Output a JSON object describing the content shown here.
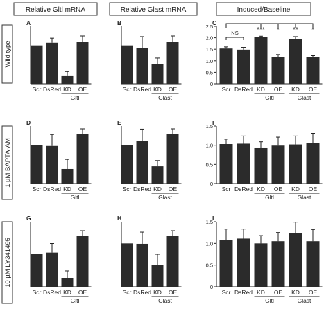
{
  "headers": {
    "col1": "Relative Gltl mRNA",
    "col2": "Relative Glast mRNA",
    "col3": "Induced/Baseline"
  },
  "row_labels": [
    "Wild type",
    "1 µM BAPTA-AM",
    "10 µM LY341495"
  ],
  "significance": {
    "ns": "NS",
    "kd_gltl": "***",
    "oe_gltl": "*",
    "kd_glast": "**",
    "oe_glast": "*"
  },
  "colors": {
    "bar": "#2b2b2b",
    "axis": "#222222",
    "frame": "#333333"
  },
  "chart_data": [
    {
      "type": "bar",
      "panel": "A",
      "title": "",
      "xlabel": "",
      "ylabel": "",
      "categories": [
        "Scr",
        "DsRed",
        "KD",
        "OE"
      ],
      "group_label": "Gltl",
      "values": [
        1.0,
        1.07,
        0.2,
        11.5
      ],
      "errors": [
        0,
        0.12,
        0.12,
        1.5
      ],
      "ylim": [
        0,
        1.5
      ],
      "yticks": [],
      "axis_break": true
    },
    {
      "type": "bar",
      "panel": "B",
      "title": "",
      "xlabel": "",
      "ylabel": "",
      "categories": [
        "Scr",
        "DsRed",
        "KD",
        "OE"
      ],
      "group_label": "Glast",
      "values": [
        1.0,
        0.93,
        0.52,
        3.6
      ],
      "errors": [
        0,
        0.3,
        0.15,
        0.8
      ],
      "ylim": [
        0,
        1.5
      ],
      "yticks": [],
      "axis_break": true
    },
    {
      "type": "bar",
      "panel": "C",
      "title": "",
      "xlabel": "",
      "ylabel": "",
      "categories": [
        "Scr",
        "DsRed",
        "KD",
        "OE",
        "KD",
        "OE"
      ],
      "groups": [
        {
          "label": "Gltl",
          "indices": [
            2,
            3
          ]
        },
        {
          "label": "Glast",
          "indices": [
            4,
            5
          ]
        }
      ],
      "values": [
        1.53,
        1.48,
        2.02,
        1.15,
        1.95,
        1.17
      ],
      "errors": [
        0.07,
        0.1,
        0.05,
        0.12,
        0.1,
        0.05
      ],
      "ylim": [
        0,
        2.5
      ],
      "yticks": [
        "0",
        "0.5",
        "1.0",
        "1.5",
        "2.0",
        "2.5"
      ]
    },
    {
      "type": "bar",
      "panel": "D",
      "title": "",
      "xlabel": "",
      "ylabel": "",
      "categories": [
        "Scr",
        "DsRed",
        "KD",
        "OE"
      ],
      "group_label": "Gltl",
      "values": [
        1.0,
        0.98,
        0.38,
        10.8
      ],
      "errors": [
        0,
        0.3,
        0.25,
        1.5
      ],
      "ylim": [
        0,
        1.5
      ],
      "yticks": [],
      "axis_break": true
    },
    {
      "type": "bar",
      "panel": "E",
      "title": "",
      "xlabel": "",
      "ylabel": "",
      "categories": [
        "Scr",
        "DsRed",
        "KD",
        "OE"
      ],
      "group_label": "Glast",
      "values": [
        1.0,
        1.12,
        0.45,
        4.0
      ],
      "errors": [
        0,
        0.3,
        0.15,
        1.0
      ],
      "ylim": [
        0,
        1.5
      ],
      "yticks": [],
      "axis_break": true
    },
    {
      "type": "bar",
      "panel": "F",
      "title": "",
      "xlabel": "",
      "ylabel": "",
      "categories": [
        "Scr",
        "DsRed",
        "KD",
        "OE",
        "KD",
        "OE"
      ],
      "groups": [
        {
          "label": "Gltl",
          "indices": [
            2,
            3
          ]
        },
        {
          "label": "Glast",
          "indices": [
            4,
            5
          ]
        }
      ],
      "values": [
        1.03,
        1.04,
        0.94,
        0.99,
        1.02,
        1.05
      ],
      "errors": [
        0.13,
        0.2,
        0.15,
        0.22,
        0.22,
        0.26
      ],
      "ylim": [
        0,
        1.5
      ],
      "yticks": [
        "0",
        "0.5",
        "1.0",
        "1.5"
      ]
    },
    {
      "type": "bar",
      "panel": "G",
      "title": "",
      "xlabel": "",
      "ylabel": "",
      "categories": [
        "Scr",
        "DsRed",
        "KD",
        "OE"
      ],
      "group_label": "Gltl",
      "values": [
        1.0,
        1.05,
        0.27,
        12.0
      ],
      "errors": [
        0,
        0.28,
        0.22,
        2.0
      ],
      "ylim": [
        0,
        2.0
      ],
      "yticks": [],
      "axis_break": true
    },
    {
      "type": "bar",
      "panel": "H",
      "title": "",
      "xlabel": "",
      "ylabel": "",
      "categories": [
        "Scr",
        "DsRed",
        "KD",
        "OE"
      ],
      "group_label": "Glast",
      "values": [
        1.0,
        0.99,
        0.5,
        4.2
      ],
      "errors": [
        0,
        0.27,
        0.25,
        1.2
      ],
      "ylim": [
        0,
        1.5
      ],
      "yticks": [],
      "axis_break": true
    },
    {
      "type": "bar",
      "panel": "I",
      "title": "",
      "xlabel": "",
      "ylabel": "",
      "categories": [
        "Scr",
        "DsRed",
        "KD",
        "OE",
        "KD",
        "OE"
      ],
      "groups": [
        {
          "label": "Gltl",
          "indices": [
            2,
            3
          ]
        },
        {
          "label": "Glast",
          "indices": [
            4,
            5
          ]
        }
      ],
      "values": [
        1.08,
        1.11,
        1.0,
        1.05,
        1.24,
        1.05
      ],
      "errors": [
        0.25,
        0.22,
        0.18,
        0.2,
        0.25,
        0.27
      ],
      "ylim": [
        0,
        1.5
      ],
      "yticks": [
        "0",
        "0.5",
        "1.0",
        "1.5"
      ]
    }
  ]
}
